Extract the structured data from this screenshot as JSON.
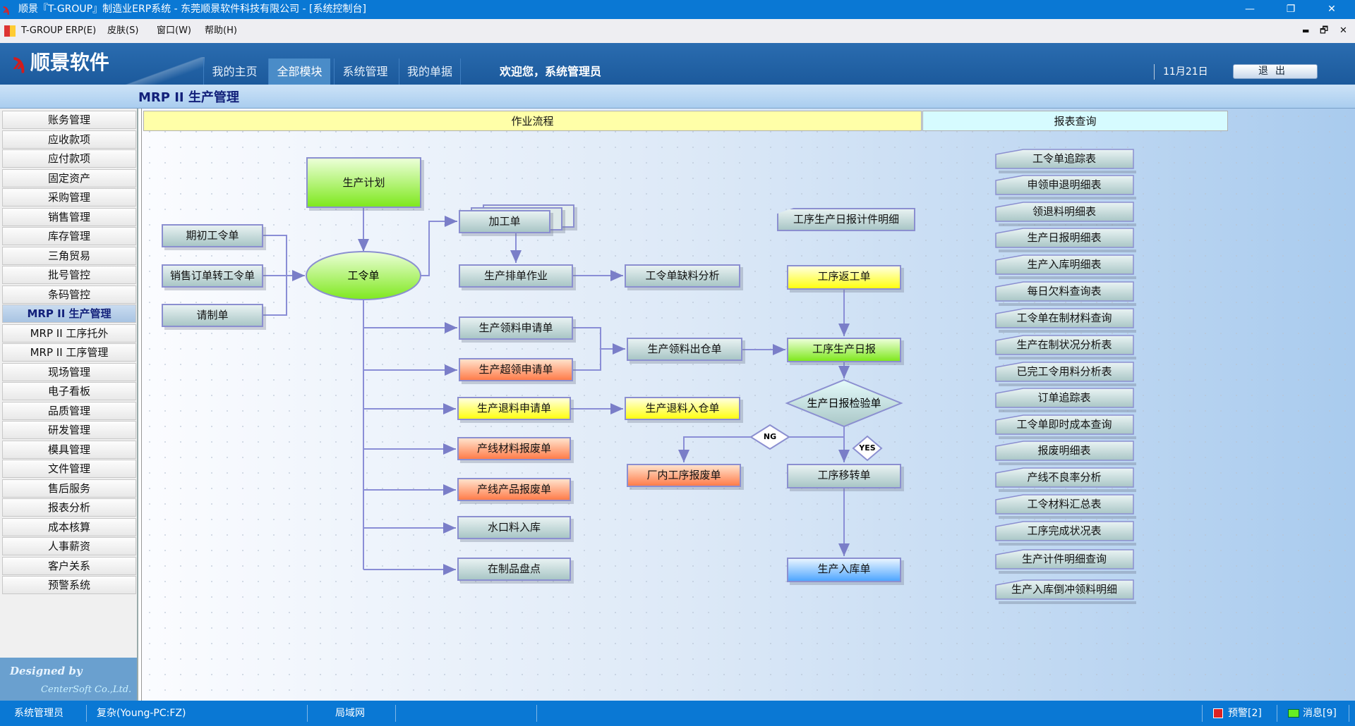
{
  "window": {
    "title": "顺景『T-GROUP』制造业ERP系统 - 东莞顺景软件科技有限公司 - [系统控制台]",
    "controls": [
      "—",
      "❐",
      "✕"
    ]
  },
  "menu": {
    "items": [
      "T-GROUP ERP(E)",
      "皮肤(S)",
      "窗口(W)",
      "帮助(H)"
    ],
    "mdi_controls": [
      "▬",
      "🗗",
      "✕"
    ]
  },
  "header": {
    "brand": "顺景软件",
    "nav": [
      "我的主页",
      "全部模块",
      "系统管理",
      "我的单据"
    ],
    "active_nav": 1,
    "welcome": "欢迎您，系统管理员",
    "date": "11月21日",
    "logout": "退出"
  },
  "module_title": "MRP II 生产管理",
  "sidebar": {
    "items": [
      "账务管理",
      "应收款项",
      "应付款项",
      "固定资产",
      "采购管理",
      "销售管理",
      "库存管理",
      "三角贸易",
      "批号管控",
      "条码管控",
      "MRP II 生产管理",
      "MRP II 工序托外",
      "MRP II 工序管理",
      "现场管理",
      "电子看板",
      "品质管理",
      "研发管理",
      "模具管理",
      "文件管理",
      "售后服务",
      "报表分析",
      "成本核算",
      "人事薪资",
      "客户关系",
      "预警系统"
    ],
    "active": 10,
    "designed_by": "Designed by",
    "company": "CenterSoft Co.,Ltd."
  },
  "tabs": {
    "workflow": "作业流程",
    "reports": "报表查询"
  },
  "flow": {
    "plan": "生产计划",
    "initial_wo": "期初工令单",
    "so_to_wo": "销售订单转工令单",
    "request": "请制单",
    "work_order": "工令单",
    "process_order": "加工单",
    "scheduling": "生产排单作业",
    "shortage": "工令单缺料分析",
    "issue_req": "生产领料申请单",
    "over_issue_req": "生产超领申请单",
    "return_req": "生产退料申请单",
    "line_material_scrap": "产线材料报废单",
    "line_product_scrap": "产线产品报废单",
    "sprue_in": "水口料入库",
    "wip_count": "在制品盘点",
    "issue_out": "生产领料出仓单",
    "return_in": "生产退料入仓单",
    "internal_scrap": "厂内工序报废单",
    "piece_detail": "工序生产日报计件明细",
    "rework": "工序返工单",
    "daily_report": "工序生产日报",
    "inspection": "生产日报检验单",
    "ng": "NG",
    "yes": "YES",
    "transfer": "工序移转单",
    "stock_in": "生产入库单"
  },
  "reports": [
    "工令单追踪表",
    "申领申退明细表",
    "领退料明细表",
    "生产日报明细表",
    "生产入库明细表",
    "每日欠料查询表",
    "工令单在制材料查询",
    "生产在制状况分析表",
    "已完工令用料分析表",
    "订单追踪表",
    "工令单即时成本查询",
    "报废明细表",
    "产线不良率分析",
    "工令材料汇总表",
    "工序完成状况表",
    "生产计件明细查询",
    "生产入库倒冲领料明细"
  ],
  "status": {
    "user": "系统管理员",
    "account": "复杂(Young-PC:FZ)",
    "network": "局域网",
    "alerts": "预警[2]",
    "messages": "消息[9]"
  },
  "colors": {
    "titlebar": "#0a78d4",
    "header": "#1f5fa0",
    "green": "#7fe81e",
    "orange": "#ff7c4a",
    "yellow": "#ffff10",
    "blue": "#4fa6ff"
  }
}
